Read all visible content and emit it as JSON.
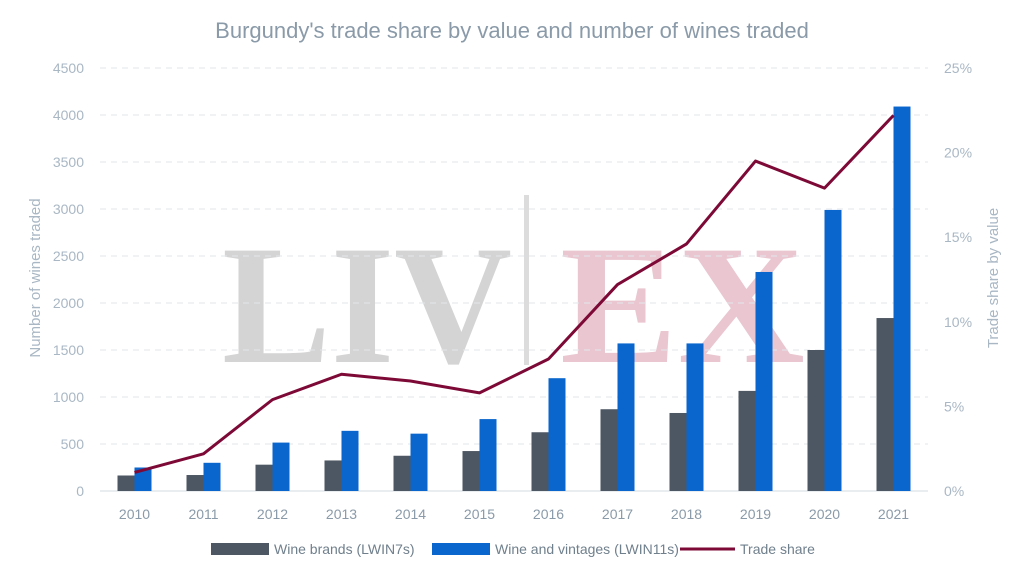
{
  "chart_data": {
    "type": "bar+line",
    "title": "Burgundy's trade share by value and number of wines traded",
    "categories": [
      "2010",
      "2011",
      "2012",
      "2013",
      "2014",
      "2015",
      "2016",
      "2017",
      "2018",
      "2019",
      "2020",
      "2021"
    ],
    "series": [
      {
        "name": "Wine brands (LWIN7s)",
        "type": "bar",
        "axis": "left",
        "color": "#4d5763",
        "values": [
          165,
          170,
          280,
          325,
          375,
          425,
          625,
          870,
          830,
          1065,
          1500,
          1840
        ]
      },
      {
        "name": "Wine and vintages (LWIN11s)",
        "type": "bar",
        "axis": "left",
        "color": "#0a66cc",
        "values": [
          250,
          300,
          515,
          640,
          610,
          765,
          1200,
          1570,
          1570,
          2330,
          2990,
          4090
        ]
      },
      {
        "name": "Trade share",
        "type": "line",
        "axis": "right",
        "color": "#7d0a36",
        "values": [
          1.1,
          2.2,
          5.4,
          6.9,
          6.5,
          5.8,
          7.8,
          12.2,
          14.6,
          19.5,
          17.9,
          22.2
        ]
      }
    ],
    "ylabel": "Number of wines traded",
    "y2label": "Trade share by value",
    "ylim": [
      0,
      4500
    ],
    "y2lim": [
      0,
      25
    ],
    "yticks": [
      "0",
      "500",
      "1000",
      "1500",
      "2000",
      "2500",
      "3000",
      "3500",
      "4000",
      "4500"
    ],
    "y2ticks": [
      "0%",
      "5%",
      "10%",
      "15%",
      "20%",
      "25%"
    ],
    "grid": true,
    "legend_position": "bottom"
  },
  "watermark": {
    "left": "LIV",
    "right": "EX"
  }
}
